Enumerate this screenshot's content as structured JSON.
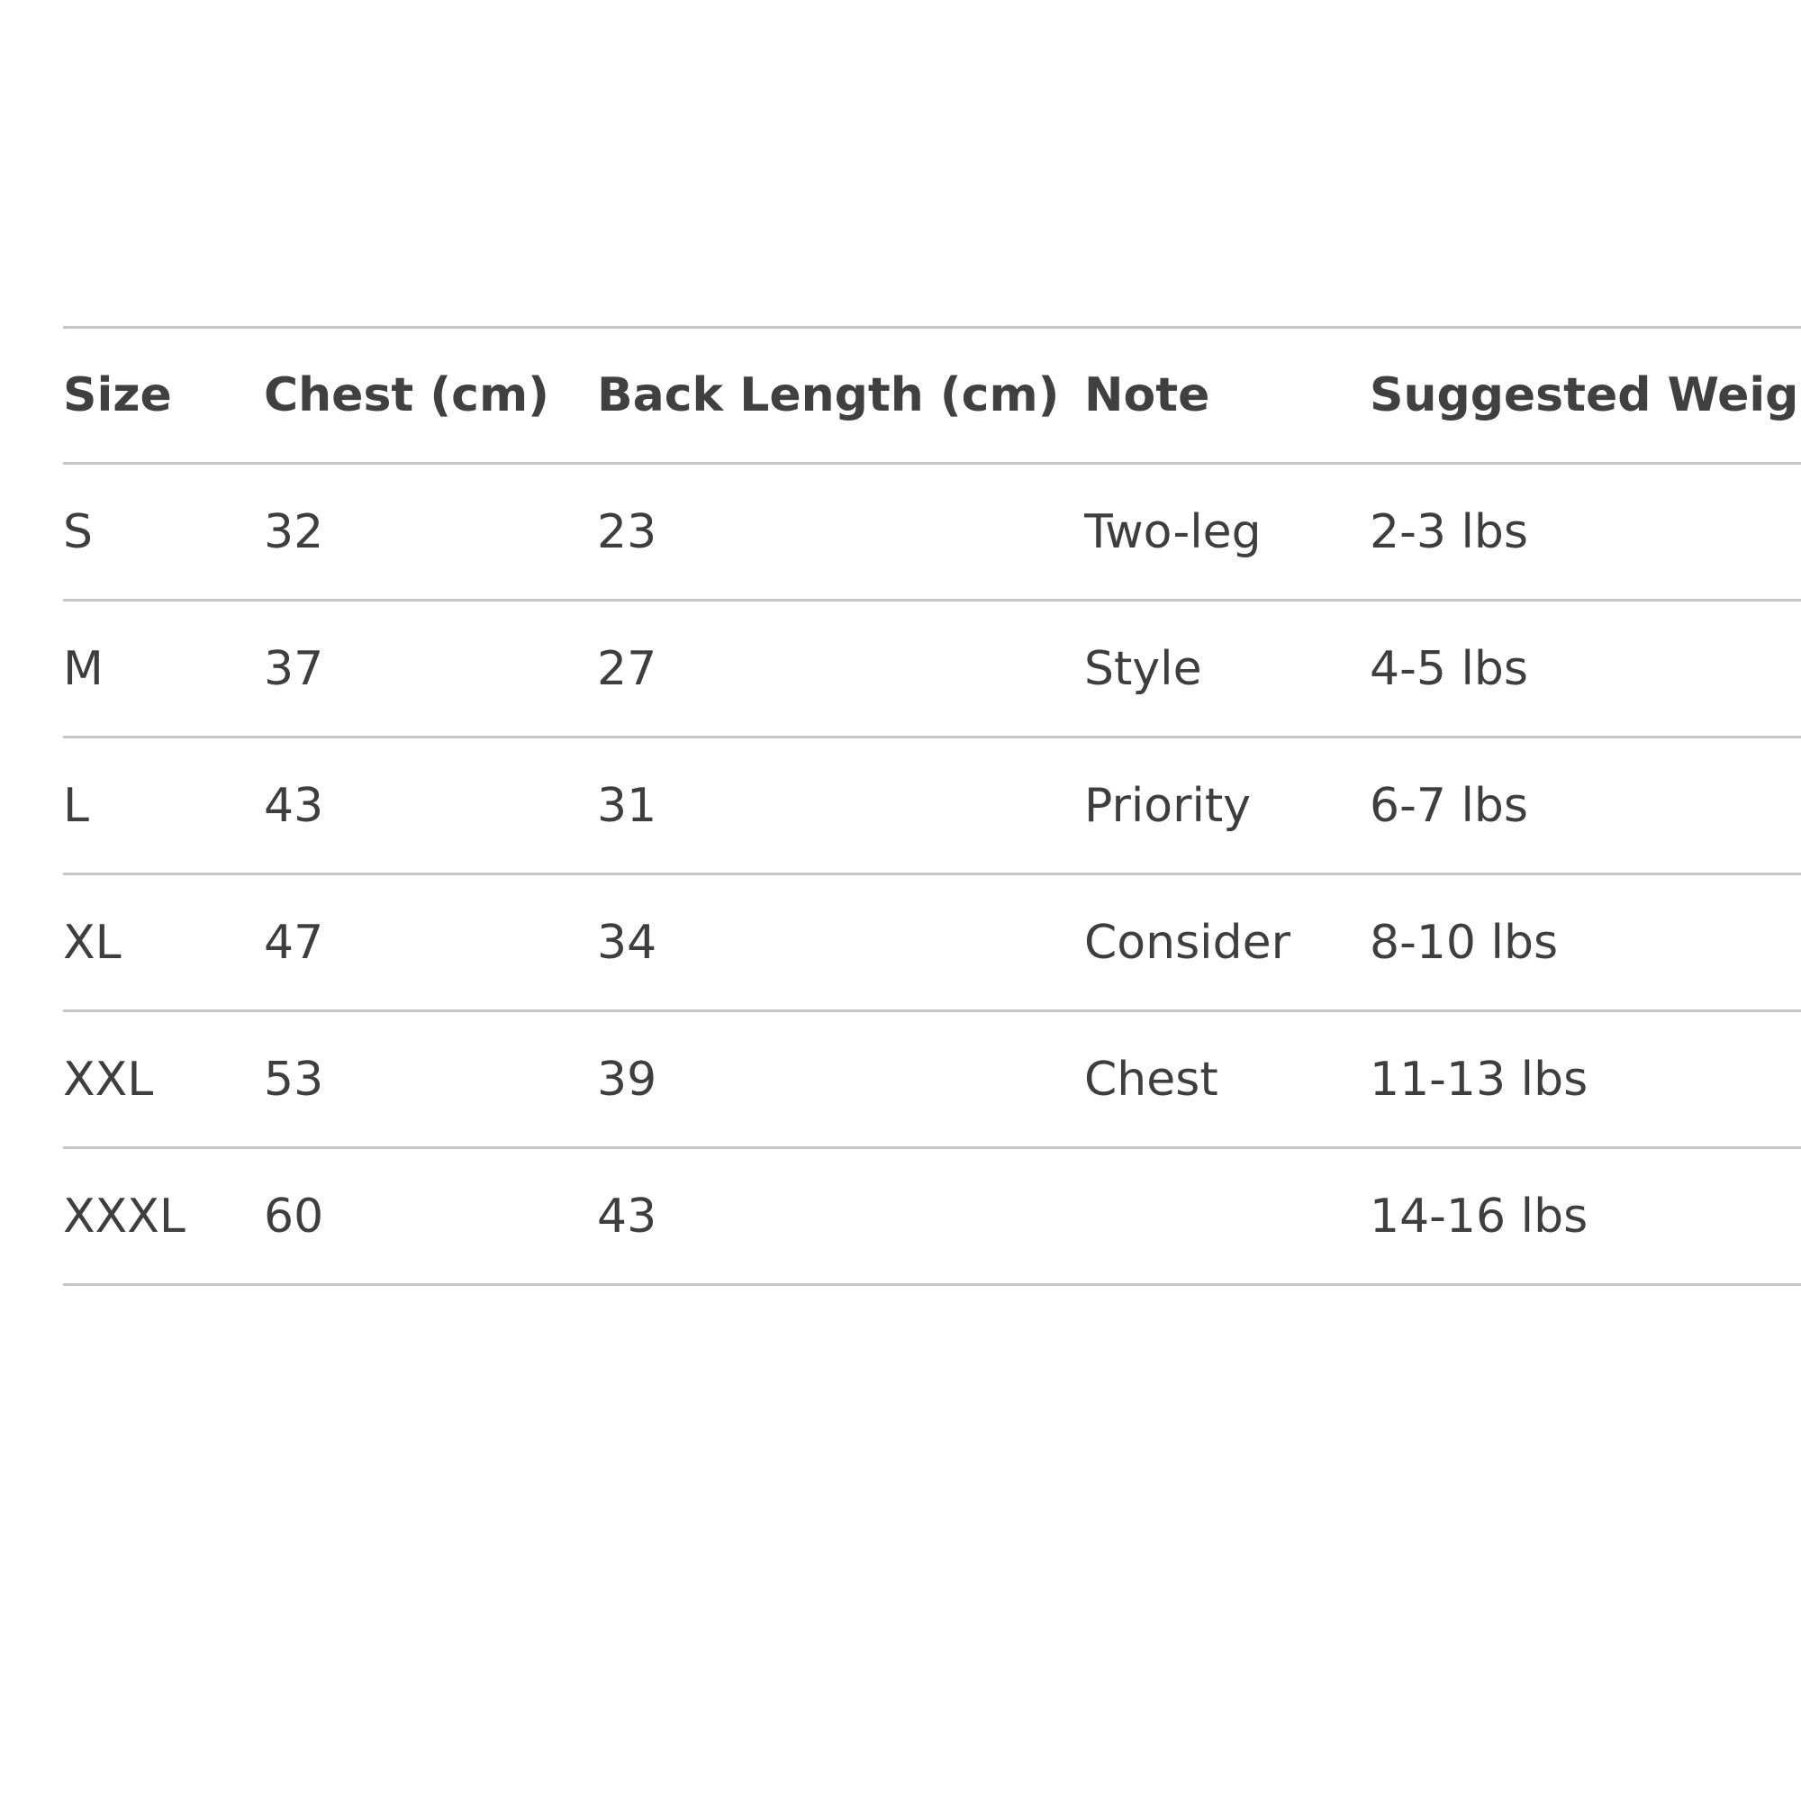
{
  "table": {
    "headers": [
      "Size",
      "Chest (cm)",
      "Back Length (cm)",
      "Note",
      "Suggested Weight"
    ],
    "rows": [
      [
        "S",
        "32",
        "23",
        "Two-leg",
        "2-3 lbs"
      ],
      [
        "M",
        "37",
        "27",
        "Style",
        "4-5 lbs"
      ],
      [
        "L",
        "43",
        "31",
        "Priority",
        "6-7 lbs"
      ],
      [
        "XL",
        "47",
        "34",
        "Consider",
        "8-10 lbs"
      ],
      [
        "XXL",
        "53",
        "39",
        "Chest",
        "11-13 lbs"
      ],
      [
        "XXXL",
        "60",
        "43",
        "",
        "14-16 lbs"
      ]
    ]
  },
  "colors": {
    "text": "#3e3e3e",
    "header_text": "#404040",
    "rule": "#c6c6c6",
    "background": "#ffffff"
  }
}
